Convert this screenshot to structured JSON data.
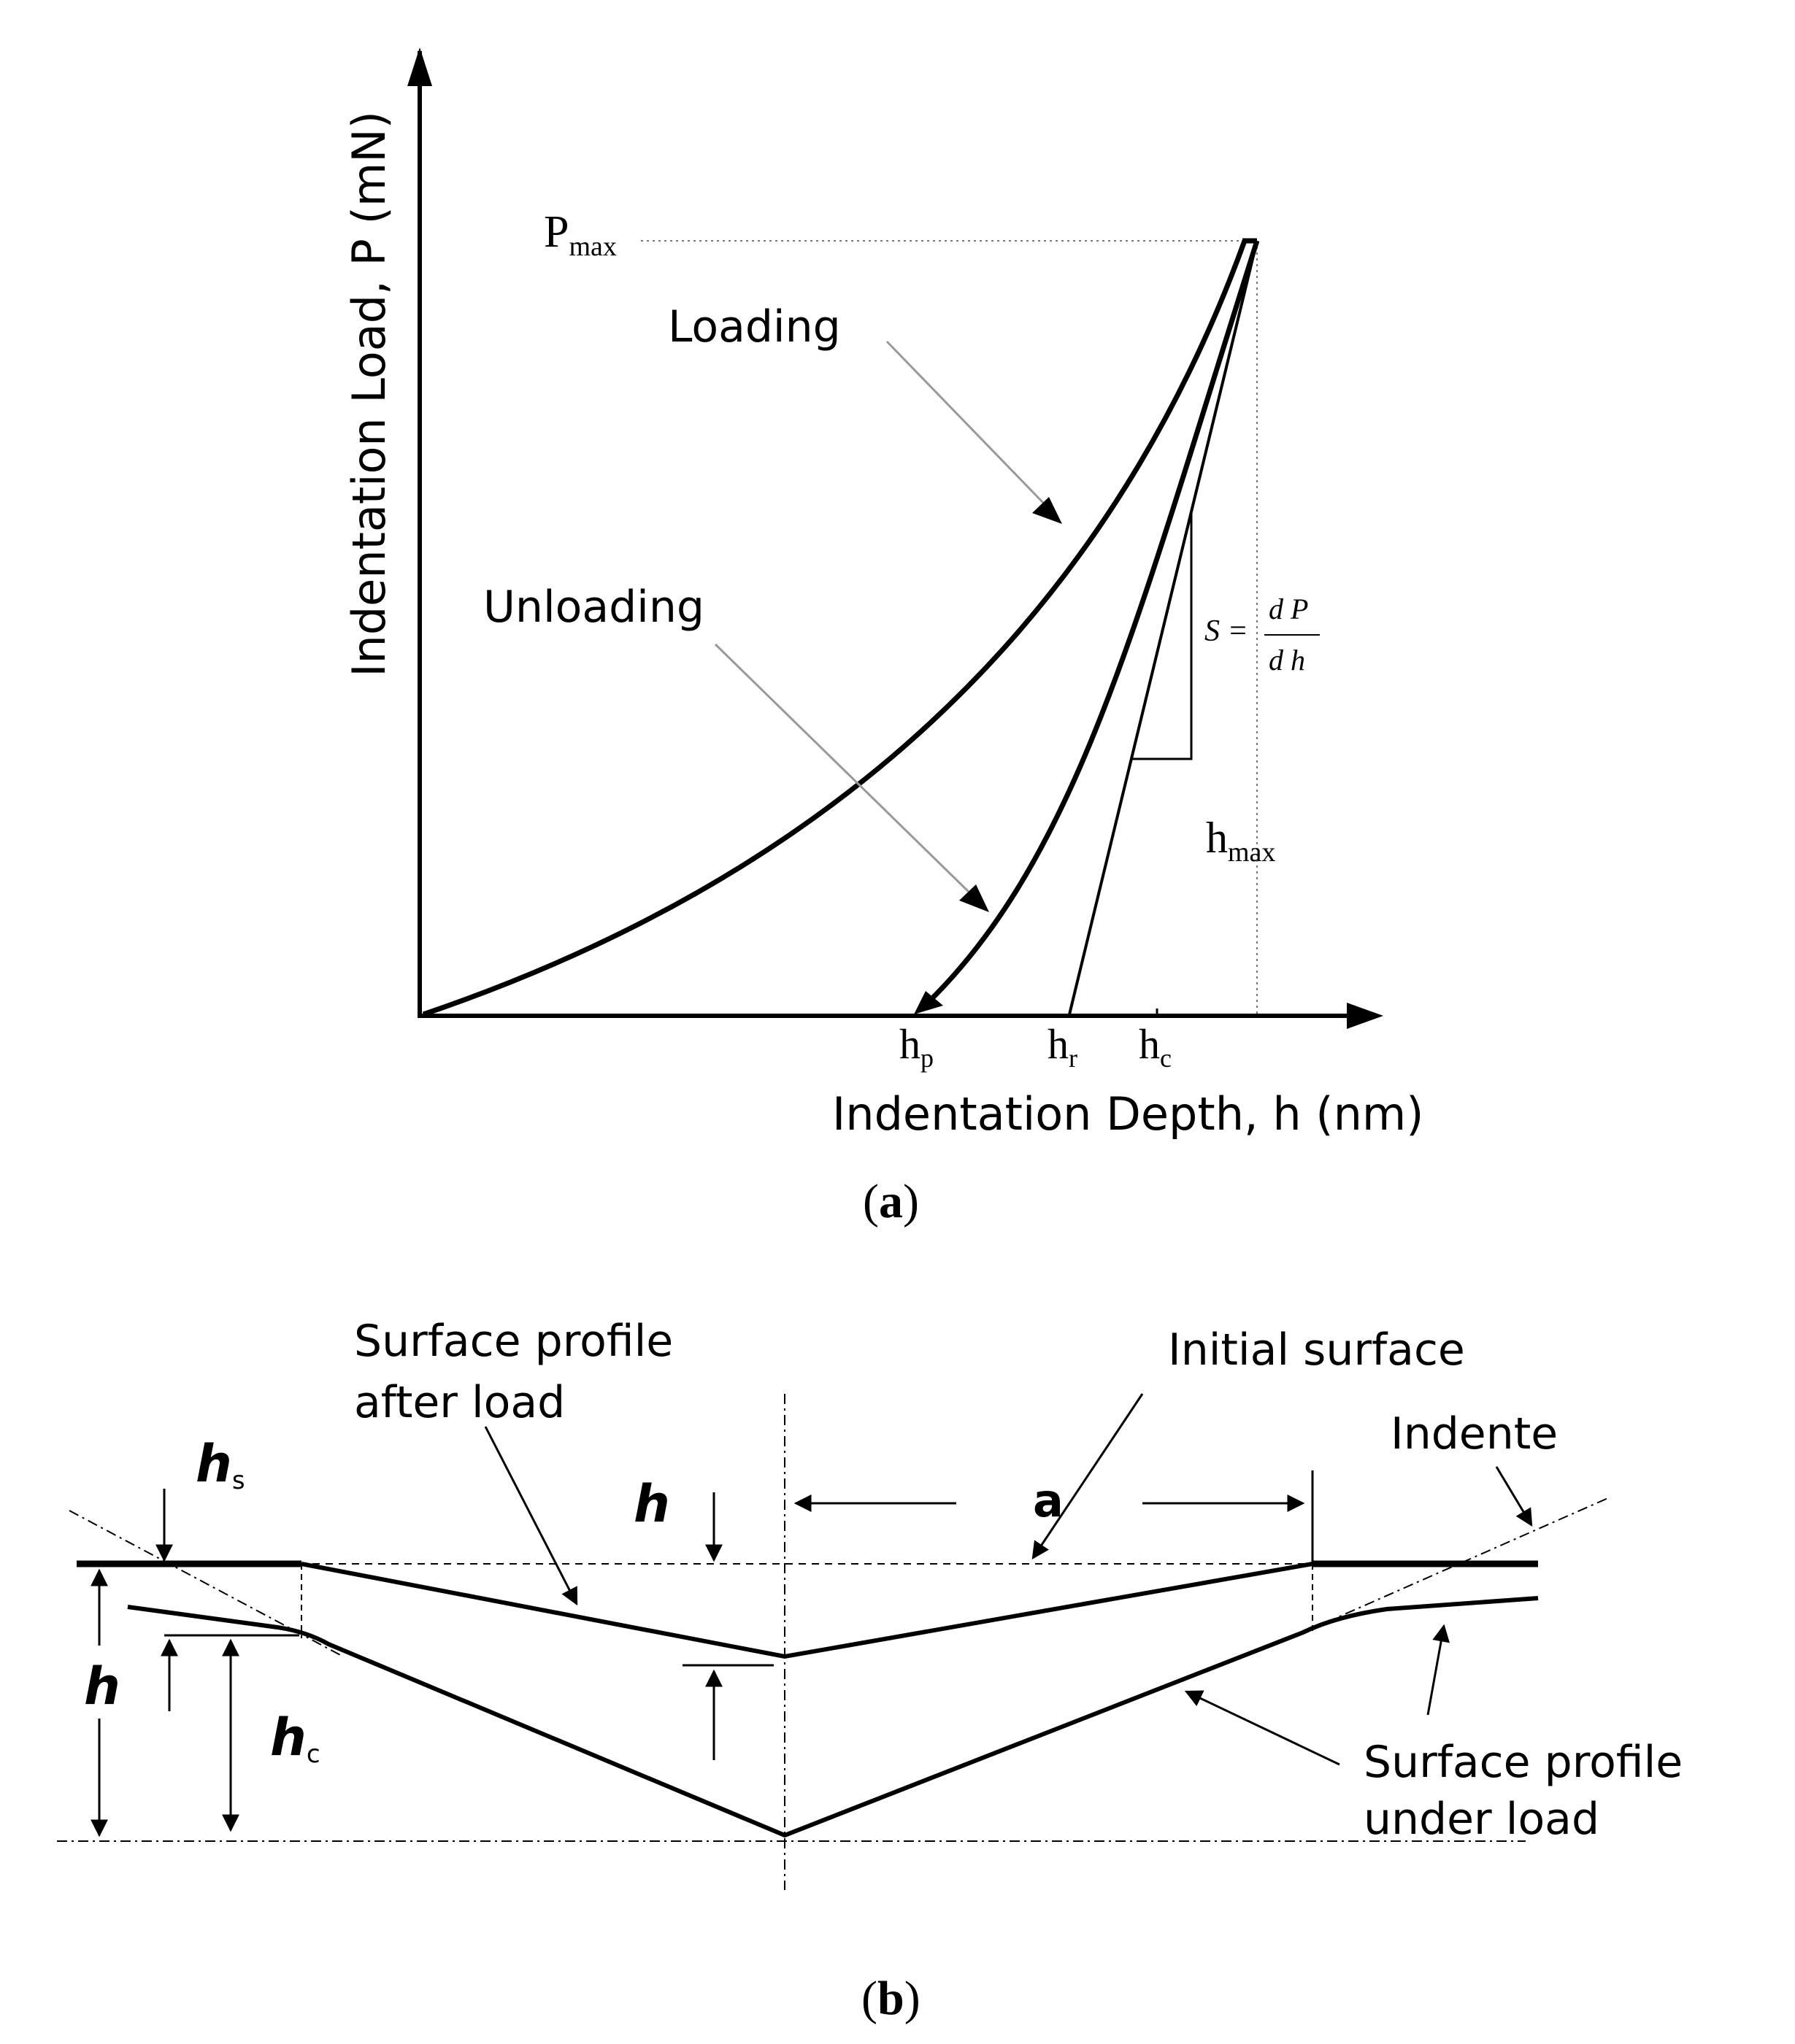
{
  "panel_a": {
    "y_axis_label": "Indentation Load, P (mN)",
    "x_axis_label": "Indentation Depth, h (nm)",
    "pmax": {
      "base": "P",
      "sub": "max"
    },
    "loading_label": "Loading",
    "unloading_label": "Unloading",
    "stiffness": {
      "lhs": "S =",
      "num": "d P",
      "den": "d h"
    },
    "hmax": {
      "base": "h",
      "sub": "max"
    },
    "hp": {
      "base": "h",
      "sub": "p"
    },
    "hr": {
      "base": "h",
      "sub": "r"
    },
    "hc": {
      "base": "h",
      "sub": "c"
    },
    "caption": {
      "open": "(",
      "letter": "a",
      "close": ")"
    }
  },
  "panel_b": {
    "after_load_line1": "Surface profile",
    "after_load_line2": "after load",
    "initial_surface": "Initial surface",
    "indente": "Indente",
    "a_label": "a",
    "h_top": "h",
    "hs": {
      "base": "h",
      "sub": "s"
    },
    "h_left": "h",
    "hc": {
      "base": "h",
      "sub": "c"
    },
    "under_load_line1": "Surface profile",
    "under_load_line2": "under load",
    "caption": {
      "open": "(",
      "letter": "b",
      "close": ")"
    }
  }
}
